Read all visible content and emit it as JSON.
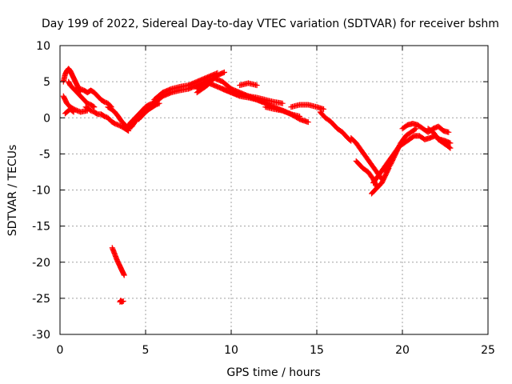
{
  "chart_data": {
    "type": "scatter",
    "title": "Day 199 of 2022, Sidereal Day-to-day VTEC variation (SDTVAR) for receiver bshm",
    "xlabel": "GPS time / hours",
    "ylabel": "SDTVAR / TECUs",
    "xlim": [
      0,
      25
    ],
    "ylim": [
      -30,
      10
    ],
    "xticks": [
      0,
      5,
      10,
      15,
      20,
      25
    ],
    "yticks": [
      10,
      5,
      0,
      -5,
      -10,
      -15,
      -20,
      -25,
      -30
    ],
    "grid": true,
    "marker": "+",
    "color": "#ff0000",
    "series": [
      {
        "name": "SDTVAR",
        "segments": [
          {
            "x": [
              0.2,
              0.3,
              0.4,
              0.5,
              0.6,
              0.7,
              0.8,
              0.9,
              1.0,
              1.1,
              1.2
            ],
            "y": [
              5.0,
              6.0,
              6.5,
              6.8,
              6.5,
              6.0,
              5.5,
              5.0,
              4.5,
              4.0,
              3.6
            ]
          },
          {
            "x": [
              0.2,
              0.3,
              0.4,
              0.6,
              0.8,
              1.0,
              1.2,
              1.4,
              1.6
            ],
            "y": [
              3.0,
              2.5,
              2.0,
              1.5,
              1.2,
              1.0,
              0.8,
              0.9,
              1.0
            ]
          },
          {
            "x": [
              0.3,
              0.4,
              0.5,
              0.6,
              0.7,
              0.8
            ],
            "y": [
              0.6,
              0.8,
              1.0,
              1.2,
              1.0,
              0.8
            ]
          },
          {
            "x": [
              0.5,
              0.6,
              0.8,
              1.0,
              1.2,
              1.4,
              1.6,
              1.8,
              2.0
            ],
            "y": [
              5.0,
              4.5,
              4.0,
              3.5,
              3.0,
              2.5,
              2.0,
              1.8,
              1.5
            ]
          },
          {
            "x": [
              1.2,
              1.4,
              1.6,
              1.8,
              2.0,
              2.2,
              2.4,
              2.6,
              2.8,
              3.0
            ],
            "y": [
              4.0,
              3.8,
              3.5,
              3.8,
              3.5,
              3.0,
              2.5,
              2.2,
              2.0,
              1.5
            ]
          },
          {
            "x": [
              1.5,
              1.8,
              2.0,
              2.2,
              2.4,
              2.6,
              2.8,
              3.0,
              3.2,
              3.4,
              3.6,
              3.8,
              4.0
            ],
            "y": [
              1.5,
              1.0,
              0.8,
              0.5,
              0.5,
              0.2,
              0.0,
              -0.5,
              -0.8,
              -1.0,
              -1.2,
              -1.5,
              -1.8
            ]
          },
          {
            "x": [
              2.8,
              3.0,
              3.2,
              3.4,
              3.6,
              3.8,
              4.0,
              4.2,
              4.4,
              4.6,
              4.8,
              5.0
            ],
            "y": [
              1.5,
              1.2,
              0.8,
              0.2,
              -0.5,
              -1.0,
              -1.5,
              -1.2,
              -0.5,
              0.0,
              0.5,
              1.0
            ]
          },
          {
            "x": [
              4.0,
              4.2,
              4.4,
              4.6,
              4.8,
              5.0,
              5.2,
              5.4,
              5.6,
              5.8,
              6.0
            ],
            "y": [
              -1.0,
              -0.5,
              0.0,
              0.5,
              1.0,
              1.5,
              1.8,
              2.0,
              2.3,
              2.6,
              3.0
            ]
          },
          {
            "x": [
              4.6,
              4.8,
              5.0,
              5.2,
              5.4,
              5.6,
              5.8
            ],
            "y": [
              -0.2,
              0.3,
              0.8,
              1.2,
              1.5,
              1.8,
              2.0
            ]
          },
          {
            "x": [
              5.5,
              6.0,
              6.5,
              7.0,
              7.5,
              8.0,
              8.5,
              9.0,
              9.2
            ],
            "y": [
              2.5,
              3.5,
              4.0,
              4.3,
              4.5,
              5.0,
              5.5,
              6.0,
              6.2
            ]
          },
          {
            "x": [
              6.0,
              6.5,
              7.0,
              7.5,
              8.0,
              8.5,
              9.0
            ],
            "y": [
              3.0,
              3.5,
              3.8,
              4.0,
              4.5,
              5.0,
              5.5
            ]
          },
          {
            "x": [
              8.0,
              8.5,
              9.0,
              9.5,
              10.0,
              10.5,
              11.0,
              11.5,
              12.0,
              12.5,
              13.0,
              13.5,
              14.0
            ],
            "y": [
              4.0,
              5.0,
              4.5,
              4.0,
              3.5,
              3.0,
              2.8,
              2.5,
              2.0,
              1.5,
              1.0,
              0.5,
              0.2
            ]
          },
          {
            "x": [
              8.0,
              8.3,
              8.6,
              9.0,
              9.3,
              9.6
            ],
            "y": [
              3.5,
              4.0,
              4.5,
              5.5,
              6.0,
              6.3
            ]
          },
          {
            "x": [
              9.0,
              9.5,
              10.0,
              10.5,
              11.0,
              11.5,
              12.0
            ],
            "y": [
              5.5,
              5.0,
              4.0,
              3.5,
              3.0,
              2.5,
              2.2
            ]
          },
          {
            "x": [
              9.5,
              10.0,
              10.5,
              11.0,
              11.5,
              12.0,
              12.5,
              13.0
            ],
            "y": [
              4.0,
              3.5,
              3.2,
              3.0,
              2.8,
              2.5,
              2.2,
              2.0
            ]
          },
          {
            "x": [
              10.5,
              11.0,
              11.5
            ],
            "y": [
              4.5,
              4.8,
              4.5
            ]
          },
          {
            "x": [
              12.0,
              12.5,
              13.0,
              13.5,
              14.0,
              14.5
            ],
            "y": [
              1.5,
              1.2,
              1.0,
              0.5,
              -0.2,
              -0.6
            ]
          },
          {
            "x": [
              13.5,
              14.0,
              14.5,
              15.0,
              15.4
            ],
            "y": [
              1.5,
              1.8,
              1.8,
              1.5,
              1.2
            ]
          },
          {
            "x": [
              15.2,
              15.5,
              15.8,
              16.0,
              16.2,
              16.5,
              16.8,
              17.0
            ],
            "y": [
              0.8,
              0.0,
              -0.5,
              -1.0,
              -1.5,
              -2.0,
              -2.8,
              -3.2
            ]
          },
          {
            "x": [
              17.0,
              17.3,
              17.6,
              17.9,
              18.2,
              18.5,
              18.8
            ],
            "y": [
              -2.8,
              -3.5,
              -4.5,
              -5.5,
              -6.5,
              -7.5,
              -8.5
            ]
          },
          {
            "x": [
              17.3,
              17.5,
              17.7,
              18.0,
              18.3,
              18.5
            ],
            "y": [
              -6.0,
              -6.5,
              -7.0,
              -7.5,
              -8.5,
              -9.5
            ]
          },
          {
            "x": [
              18.2,
              18.4,
              18.6,
              18.8,
              19.0,
              19.2
            ],
            "y": [
              -10.5,
              -10.0,
              -9.5,
              -9.0,
              -8.0,
              -7.0
            ]
          },
          {
            "x": [
              18.3,
              18.6,
              18.9,
              19.2,
              19.5,
              19.8,
              20.1,
              20.4
            ],
            "y": [
              -9.0,
              -8.0,
              -7.0,
              -6.0,
              -5.0,
              -4.0,
              -3.5,
              -3.0
            ]
          },
          {
            "x": [
              19.0,
              19.3,
              19.6,
              19.9,
              20.2,
              20.5,
              20.8
            ],
            "y": [
              -7.5,
              -6.5,
              -5.0,
              -3.5,
              -2.5,
              -2.0,
              -1.5
            ]
          },
          {
            "x": [
              20.0,
              20.3,
              20.6,
              20.9,
              21.2,
              21.5,
              21.8,
              22.1,
              22.4,
              22.7
            ],
            "y": [
              -1.5,
              -1.0,
              -0.8,
              -1.0,
              -1.5,
              -2.0,
              -1.5,
              -1.2,
              -1.8,
              -2.0
            ]
          },
          {
            "x": [
              20.4,
              20.7,
              21.0,
              21.3,
              21.6,
              21.9,
              22.2,
              22.5,
              22.8
            ],
            "y": [
              -3.0,
              -2.5,
              -2.5,
              -3.0,
              -2.8,
              -2.5,
              -3.0,
              -3.2,
              -3.5
            ]
          },
          {
            "x": [
              21.5,
              21.8,
              22.1,
              22.4,
              22.7,
              22.8
            ],
            "y": [
              -1.5,
              -2.0,
              -3.0,
              -3.5,
              -4.0,
              -4.2
            ]
          },
          {
            "x": [
              3.05,
              3.15,
              3.25,
              3.35,
              3.45,
              3.55,
              3.65,
              3.75
            ],
            "y": [
              -18.0,
              -18.6,
              -19.2,
              -19.8,
              -20.3,
              -20.8,
              -21.3,
              -21.8
            ]
          },
          {
            "x": [
              3.5,
              3.55,
              3.6,
              3.7
            ],
            "y": [
              -25.5,
              -25.3,
              -25.5,
              -25.4
            ]
          }
        ]
      }
    ]
  }
}
